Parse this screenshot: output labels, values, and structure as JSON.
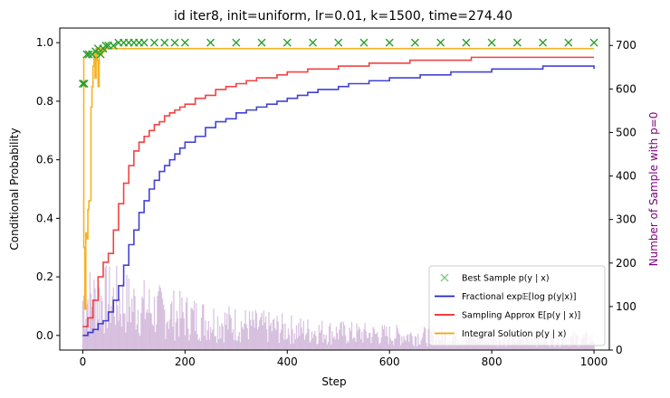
{
  "chart_data": {
    "type": "line",
    "title": "id iter8, init=uniform, lr=0.01, k=1500, time=274.40",
    "xlabel": "Step",
    "ylabel": "Conditional Probability",
    "y2label": "Number of Sample with p=0",
    "xlim": [
      -45,
      1030
    ],
    "ylim": [
      -0.05,
      1.05
    ],
    "y2lim": [
      0,
      740
    ],
    "xticks": [
      0,
      200,
      400,
      600,
      800,
      1000
    ],
    "yticks": [
      0.0,
      0.2,
      0.4,
      0.6,
      0.8,
      1.0
    ],
    "y2ticks": [
      0,
      100,
      200,
      300,
      400,
      500,
      600,
      700
    ],
    "legend_position": "lower right",
    "colors": {
      "best": "#2ca02c",
      "fractional": "#2222cc",
      "sampling": "#ee2222",
      "integral": "#f5a500",
      "hist": "#b58ac4",
      "y2label": "#800080"
    },
    "legend": [
      {
        "label": "Best Sample p(y | x)",
        "marker": "x",
        "color": "#2ca02c"
      },
      {
        "label": "Fractional exp𝔼[log p(y|x)]",
        "marker": "line",
        "color": "#2222cc"
      },
      {
        "label": "Sampling Approx E[p(y | x)]",
        "marker": "line",
        "color": "#ee2222"
      },
      {
        "label": "Integral Solution p(y | x)",
        "marker": "line",
        "color": "#f5a500"
      }
    ],
    "series": [
      {
        "name": "Fractional exp𝔼[log p(y|x)]",
        "x": [
          0,
          10,
          20,
          30,
          40,
          50,
          60,
          70,
          80,
          90,
          100,
          110,
          120,
          130,
          140,
          150,
          160,
          170,
          180,
          190,
          200,
          220,
          240,
          260,
          280,
          300,
          320,
          340,
          360,
          380,
          400,
          420,
          440,
          460,
          480,
          500,
          520,
          540,
          560,
          580,
          600,
          620,
          640,
          660,
          680,
          700,
          720,
          740,
          760,
          780,
          800,
          820,
          840,
          860,
          880,
          900,
          920,
          940,
          960,
          980,
          1000
        ],
        "y": [
          0.0,
          0.01,
          0.02,
          0.04,
          0.05,
          0.08,
          0.12,
          0.17,
          0.24,
          0.31,
          0.36,
          0.42,
          0.46,
          0.5,
          0.53,
          0.56,
          0.58,
          0.6,
          0.62,
          0.64,
          0.66,
          0.68,
          0.71,
          0.73,
          0.74,
          0.76,
          0.77,
          0.78,
          0.79,
          0.8,
          0.81,
          0.82,
          0.83,
          0.84,
          0.84,
          0.85,
          0.86,
          0.86,
          0.87,
          0.87,
          0.88,
          0.88,
          0.88,
          0.89,
          0.89,
          0.89,
          0.9,
          0.9,
          0.9,
          0.9,
          0.91,
          0.91,
          0.91,
          0.91,
          0.91,
          0.92,
          0.92,
          0.92,
          0.92,
          0.92,
          0.91
        ]
      },
      {
        "name": "Sampling Approx E[p(y | x)]",
        "x": [
          0,
          10,
          20,
          30,
          40,
          50,
          60,
          70,
          80,
          90,
          100,
          110,
          120,
          130,
          140,
          150,
          160,
          170,
          180,
          190,
          200,
          220,
          240,
          260,
          280,
          300,
          320,
          340,
          360,
          380,
          400,
          420,
          440,
          460,
          480,
          500,
          520,
          540,
          560,
          580,
          600,
          620,
          640,
          660,
          680,
          700,
          720,
          740,
          760,
          780,
          800,
          820,
          840,
          860,
          880,
          900,
          920,
          940,
          960,
          980,
          1000
        ],
        "y": [
          0.03,
          0.06,
          0.12,
          0.2,
          0.25,
          0.28,
          0.36,
          0.45,
          0.52,
          0.58,
          0.63,
          0.66,
          0.68,
          0.7,
          0.72,
          0.73,
          0.75,
          0.76,
          0.77,
          0.78,
          0.79,
          0.81,
          0.82,
          0.84,
          0.85,
          0.86,
          0.87,
          0.88,
          0.88,
          0.89,
          0.9,
          0.9,
          0.91,
          0.91,
          0.91,
          0.92,
          0.92,
          0.92,
          0.93,
          0.93,
          0.93,
          0.93,
          0.94,
          0.94,
          0.94,
          0.94,
          0.94,
          0.94,
          0.95,
          0.95,
          0.95,
          0.95,
          0.95,
          0.95,
          0.95,
          0.95,
          0.95,
          0.95,
          0.95,
          0.95,
          0.95
        ]
      },
      {
        "name": "Integral Solution p(y | x)",
        "x": [
          0,
          2,
          4,
          6,
          8,
          10,
          12,
          14,
          16,
          18,
          20,
          22,
          24,
          26,
          28,
          30,
          32,
          34,
          36,
          38,
          40,
          45,
          50,
          60,
          80,
          100,
          150,
          200,
          300,
          400,
          500,
          600,
          700,
          800,
          900,
          1000
        ],
        "y": [
          0.95,
          0.3,
          0.09,
          0.35,
          0.33,
          0.43,
          0.46,
          0.46,
          0.78,
          0.85,
          0.92,
          0.97,
          0.88,
          0.98,
          0.94,
          0.85,
          0.97,
          0.98,
          0.96,
          0.98,
          0.97,
          0.98,
          0.98,
          0.98,
          0.98,
          0.98,
          0.98,
          0.98,
          0.98,
          0.98,
          0.98,
          0.98,
          0.98,
          0.98,
          0.98,
          0.98
        ]
      },
      {
        "name": "Best Sample p(y | x)",
        "x": [
          0,
          3,
          8,
          12,
          18,
          25,
          30,
          35,
          40,
          45,
          50,
          60,
          70,
          80,
          90,
          100,
          110,
          120,
          140,
          160,
          180,
          200,
          250,
          300,
          350,
          400,
          450,
          500,
          550,
          600,
          650,
          700,
          750,
          800,
          850,
          900,
          950,
          1000
        ],
        "y": [
          0.86,
          0.86,
          0.96,
          0.96,
          0.96,
          0.97,
          0.98,
          0.96,
          0.98,
          0.99,
          0.99,
          0.99,
          1.0,
          1.0,
          1.0,
          1.0,
          1.0,
          1.0,
          1.0,
          1.0,
          1.0,
          1.0,
          1.0,
          1.0,
          1.0,
          1.0,
          1.0,
          1.0,
          1.0,
          1.0,
          1.0,
          1.0,
          1.0,
          1.0,
          1.0,
          1.0,
          1.0,
          1.0
        ]
      }
    ]
  }
}
